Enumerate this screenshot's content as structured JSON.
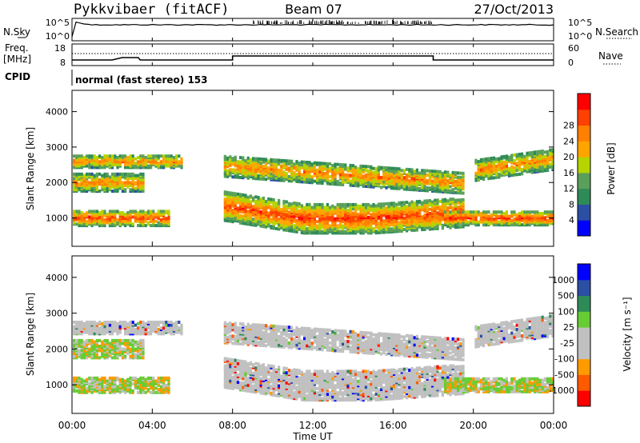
{
  "header": {
    "station": "Pykkvibaer (fitACF)",
    "beam": "Beam 07",
    "date": "27/Oct/2013"
  },
  "panels": {
    "nsky_label": "N.Sky",
    "nsearch_label": "N.Search",
    "freq_label_1": "Freq.",
    "freq_label_2": "[MHz]",
    "nave_label": "Nave",
    "cpid_label": "CPID",
    "cpid_text": "normal (fast stereo) 153",
    "noise_ticks_left": [
      "10^5",
      "10^0"
    ],
    "noise_ticks_right": [
      "10^5",
      "10^0"
    ],
    "freq_ticks_left": [
      "18",
      "8"
    ],
    "nave_ticks_right": [
      "60",
      "0"
    ]
  },
  "colors": {
    "power_scale": [
      "#0000ff",
      "#2b4fa3",
      "#2e8b57",
      "#5aa05a",
      "#b5d400",
      "#ffa500",
      "#ff7f00",
      "#ff4000",
      "#ff0000"
    ],
    "velocity_scale": [
      "#ff0000",
      "#ff5a00",
      "#ff9a00",
      "#c0c0c0",
      "#c0c0c0",
      "#66cc33",
      "#2e8b57",
      "#2b4fa3",
      "#0000ff"
    ]
  },
  "chart_data": [
    {
      "type": "heatmap",
      "name": "power",
      "ylabel": "Slant Range [km]",
      "yticks": [
        "1000",
        "2000",
        "3000",
        "4000"
      ],
      "ylim": [
        200,
        4600
      ],
      "colorbar_label": "Power [dB]",
      "colorbar_ticks": [
        "4",
        "8",
        "12",
        "16",
        "20",
        "24",
        "28"
      ]
    },
    {
      "type": "heatmap",
      "name": "velocity",
      "ylabel": "Slant Range [km]",
      "yticks": [
        "1000",
        "2000",
        "3000",
        "4000"
      ],
      "ylim": [
        200,
        4600
      ],
      "colorbar_label": "Velocity [m s⁻¹]",
      "colorbar_ticks": [
        "1000",
        "500",
        "100",
        "25",
        "-25",
        "-100",
        "-500",
        "-1000"
      ]
    }
  ],
  "xaxis": {
    "label": "Time UT",
    "ticks": [
      "00:00",
      "04:00",
      "08:00",
      "12:00",
      "16:00",
      "20:00",
      "00:00"
    ]
  }
}
